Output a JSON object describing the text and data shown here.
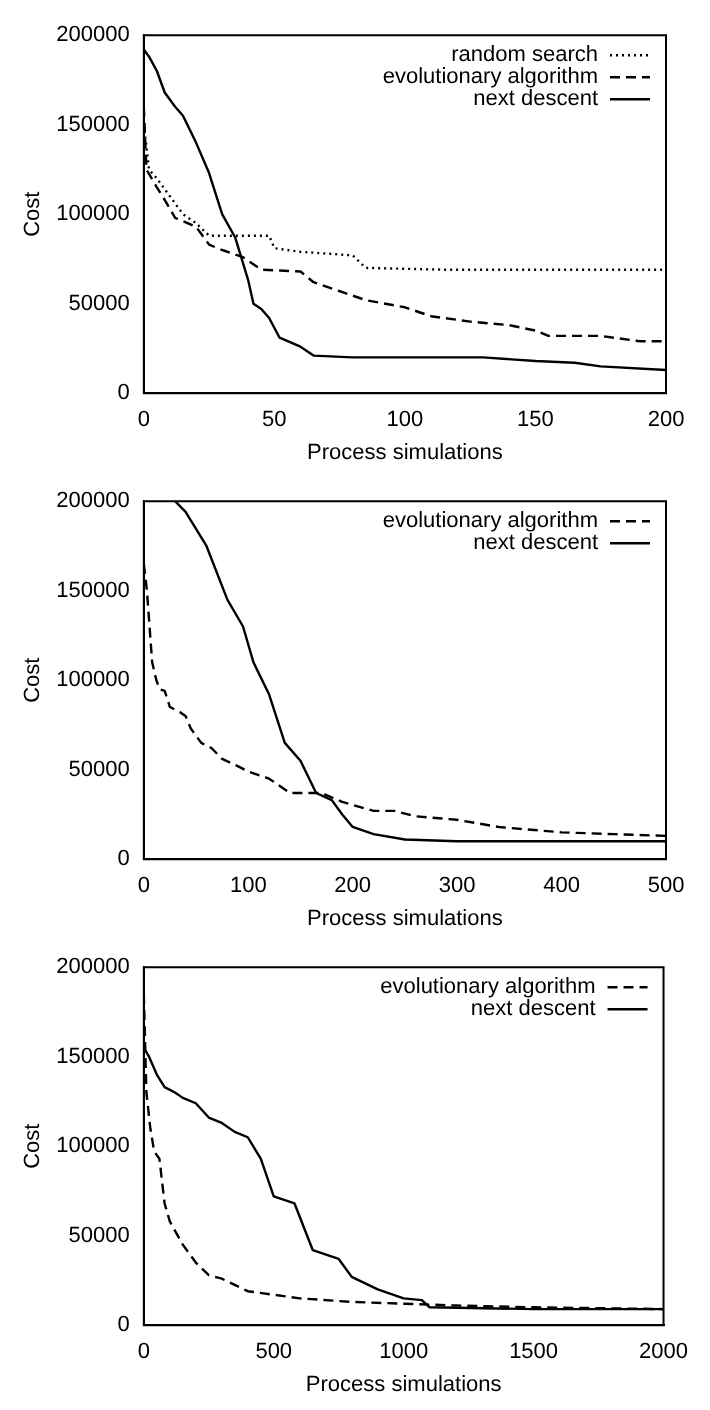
{
  "chart_data": [
    {
      "type": "line",
      "xlabel": "Process simulations",
      "ylabel": "Cost",
      "xlim": [
        0,
        200
      ],
      "xticks": [
        0,
        50,
        100,
        150,
        200
      ],
      "ylim": [
        0,
        200000
      ],
      "yticks": [
        0,
        50000,
        100000,
        150000,
        200000
      ],
      "legend": "top right",
      "grid": false,
      "series": [
        {
          "name": "random search",
          "color": "#000000",
          "line_style": "dotted",
          "x": [
            0,
            2,
            5,
            10,
            15,
            20,
            25,
            48,
            50,
            55,
            60,
            80,
            85,
            115,
            200
          ],
          "values": [
            150000,
            125000,
            120000,
            110000,
            100000,
            95000,
            88000,
            88000,
            81000,
            80000,
            79000,
            77000,
            70000,
            69000,
            69000
          ]
        },
        {
          "name": "evolutionary algorithm",
          "color": "#000000",
          "line_style": "dashed",
          "x": [
            0,
            1,
            5,
            8,
            12,
            20,
            25,
            30,
            38,
            45,
            60,
            65,
            75,
            85,
            100,
            110,
            125,
            140,
            150,
            155,
            175,
            190,
            200
          ],
          "values": [
            160000,
            125000,
            115000,
            108000,
            98000,
            93000,
            83000,
            80000,
            76000,
            69000,
            68000,
            62000,
            57000,
            52000,
            48000,
            43000,
            40000,
            38000,
            35000,
            32000,
            32000,
            29000,
            29000
          ]
        },
        {
          "name": "next descent",
          "color": "#000000",
          "line_style": "solid",
          "x": [
            0,
            2,
            5,
            8,
            12,
            15,
            20,
            25,
            30,
            35,
            40,
            42,
            45,
            48,
            52,
            60,
            65,
            80,
            130,
            150,
            165,
            175,
            200
          ],
          "values": [
            192000,
            188000,
            180000,
            168000,
            160000,
            155000,
            140000,
            123000,
            100000,
            87000,
            63000,
            50000,
            47000,
            42000,
            31000,
            26000,
            21000,
            20000,
            20000,
            18000,
            17000,
            15000,
            13000
          ]
        }
      ]
    },
    {
      "type": "line",
      "xlabel": "Process simulations",
      "ylabel": "Cost",
      "xlim": [
        0,
        500
      ],
      "xticks": [
        0,
        100,
        200,
        300,
        400,
        500
      ],
      "ylim": [
        0,
        200000
      ],
      "yticks": [
        0,
        50000,
        100000,
        150000,
        200000
      ],
      "legend": "top right",
      "grid": false,
      "series": [
        {
          "name": "evolutionary algorithm",
          "color": "#000000",
          "line_style": "dashed",
          "x": [
            0,
            3,
            8,
            12,
            15,
            20,
            25,
            35,
            40,
            45,
            55,
            65,
            75,
            90,
            100,
            120,
            140,
            170,
            190,
            220,
            240,
            260,
            300,
            340,
            400,
            450,
            500
          ],
          "values": [
            165000,
            150000,
            110000,
            100000,
            95000,
            94000,
            85000,
            82000,
            80000,
            73000,
            65000,
            62000,
            56000,
            52000,
            49000,
            45000,
            37000,
            37000,
            32000,
            27000,
            27000,
            24000,
            22000,
            18000,
            15000,
            14000,
            13000
          ]
        },
        {
          "name": "next descent",
          "color": "#000000",
          "line_style": "solid",
          "x": [
            30,
            40,
            60,
            80,
            95,
            105,
            120,
            135,
            150,
            165,
            180,
            190,
            200,
            220,
            250,
            300,
            500
          ],
          "values": [
            200000,
            194000,
            175000,
            145000,
            130000,
            110000,
            92000,
            65000,
            55000,
            37000,
            33000,
            25000,
            18000,
            14000,
            11000,
            10000,
            10000
          ]
        }
      ]
    },
    {
      "type": "line",
      "xlabel": "Process simulations",
      "ylabel": "Cost",
      "xlim": [
        0,
        2000
      ],
      "xticks": [
        0,
        500,
        1000,
        1500,
        2000
      ],
      "ylim": [
        0,
        200000
      ],
      "yticks": [
        0,
        50000,
        100000,
        150000,
        200000
      ],
      "legend": "top right",
      "grid": false,
      "series": [
        {
          "name": "evolutionary algorithm",
          "color": "#000000",
          "line_style": "dashed",
          "x": [
            0,
            10,
            25,
            40,
            60,
            80,
            100,
            150,
            200,
            250,
            300,
            400,
            500,
            600,
            800,
            1000,
            1200,
            1500,
            2000
          ],
          "values": [
            185000,
            130000,
            110000,
            97000,
            93000,
            68000,
            58000,
            45000,
            35000,
            28000,
            26000,
            19000,
            17000,
            15000,
            13000,
            12000,
            11000,
            10000,
            9000
          ]
        },
        {
          "name": "next descent",
          "color": "#000000",
          "line_style": "solid",
          "x": [
            0,
            20,
            50,
            80,
            120,
            150,
            200,
            250,
            300,
            350,
            400,
            450,
            500,
            580,
            650,
            750,
            800,
            900,
            1000,
            1070,
            1100,
            1500,
            2000
          ],
          "values": [
            155000,
            150000,
            140000,
            133000,
            130000,
            127000,
            124000,
            116000,
            113000,
            108000,
            105000,
            93000,
            72000,
            68000,
            42000,
            37000,
            27000,
            20000,
            15000,
            14000,
            10000,
            9000,
            9000
          ]
        }
      ]
    }
  ]
}
